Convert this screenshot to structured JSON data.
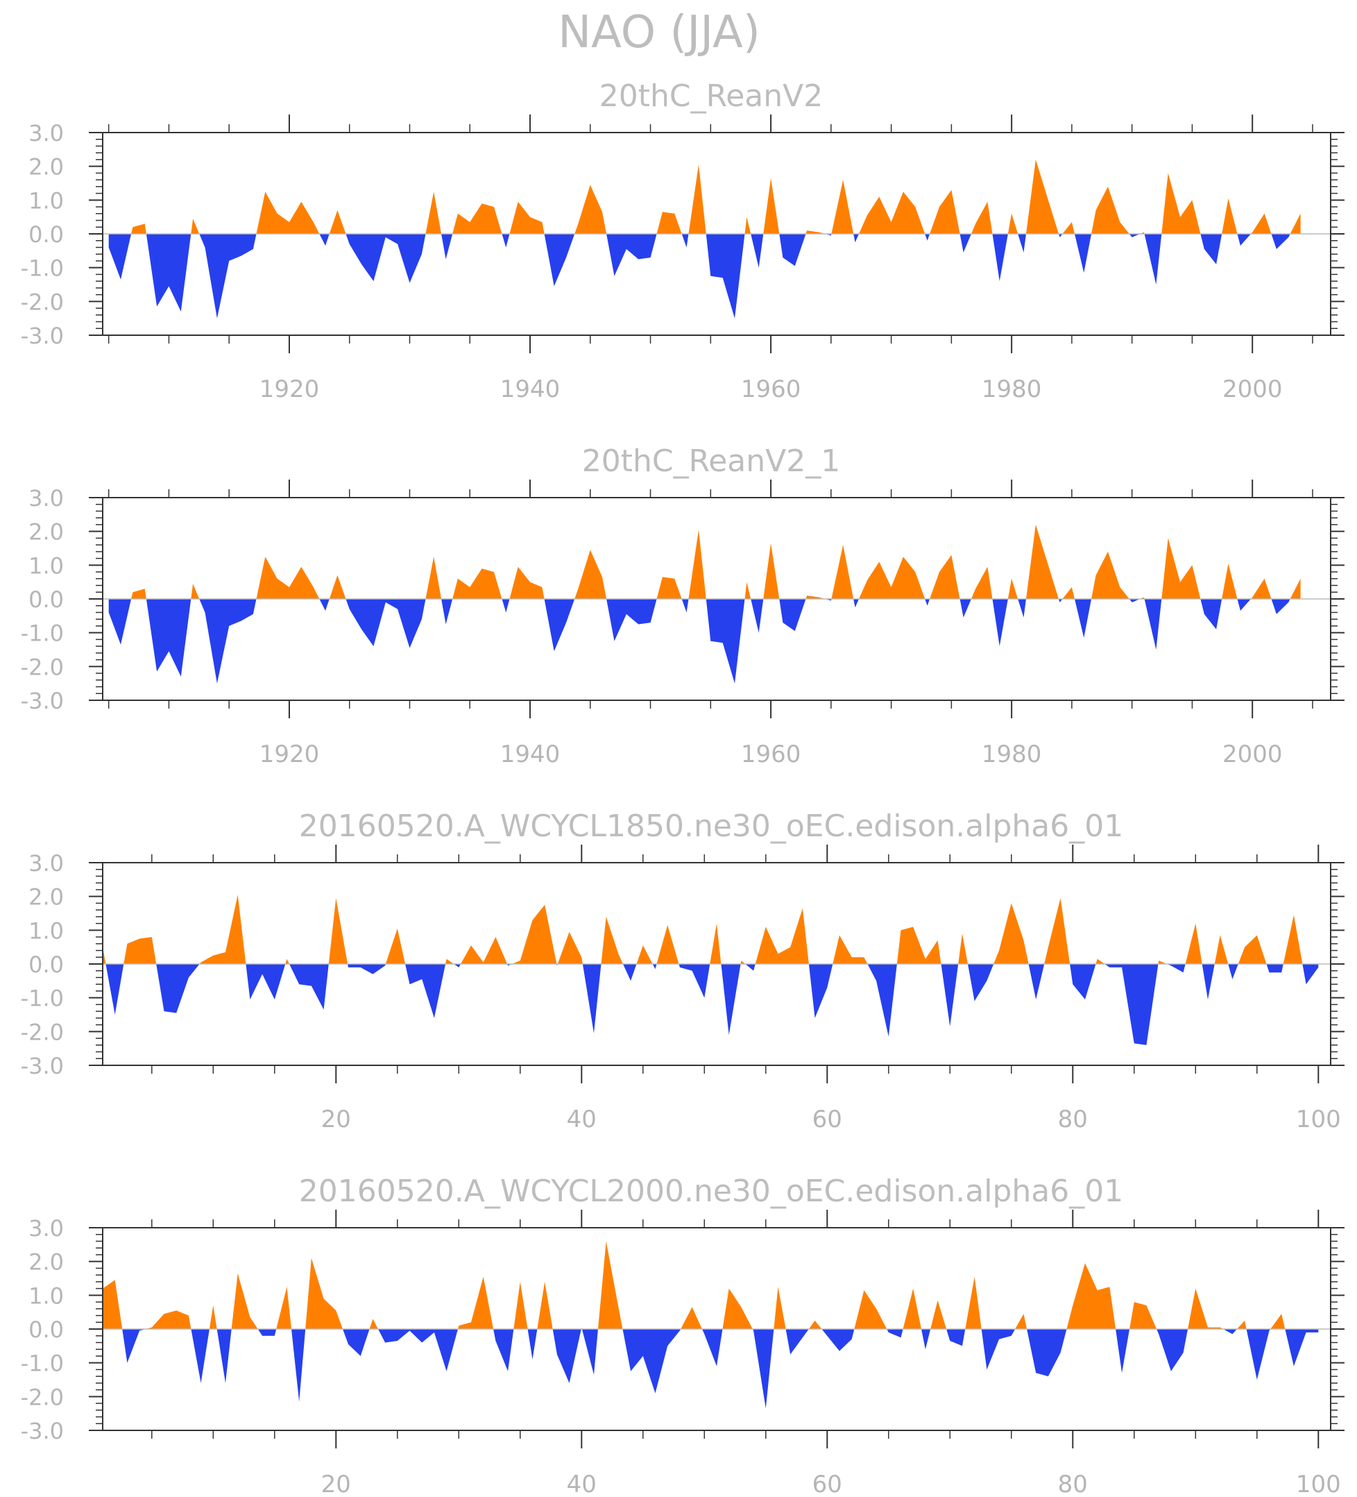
{
  "title": "NAO (JJA)",
  "colors": {
    "positive": "#ff8000",
    "negative": "#2640ee",
    "axis": "#333333",
    "text": "#b5b5b5"
  },
  "chart_data": [
    {
      "type": "area",
      "title": "20thC_ReanV2",
      "x_start": 1905,
      "xlim": [
        1904.5,
        2006.5
      ],
      "x_ticks": [
        1920,
        1940,
        1960,
        1980,
        2000
      ],
      "x_tick_labels": [
        "1920",
        "1940",
        "1960",
        "1980",
        "2000"
      ],
      "ylim": [
        -3,
        3
      ],
      "y_ticks": [
        -3,
        -2,
        -1,
        0,
        1,
        2,
        3
      ],
      "y_tick_labels": [
        "-3.0",
        "-2.0",
        "-1.0",
        "0.0",
        "1.0",
        "2.0",
        "3.0"
      ],
      "values": [
        -0.4,
        -1.35,
        0.2,
        0.3,
        -2.15,
        -1.55,
        -2.3,
        0.45,
        -0.4,
        -2.5,
        -0.8,
        -0.65,
        -0.45,
        1.25,
        0.6,
        0.35,
        0.95,
        0.35,
        -0.35,
        0.7,
        -0.3,
        -0.9,
        -1.4,
        -0.1,
        -0.3,
        -1.45,
        -0.6,
        1.25,
        -0.75,
        0.6,
        0.35,
        0.9,
        0.8,
        -0.4,
        0.95,
        0.5,
        0.35,
        -1.55,
        -0.7,
        0.3,
        1.45,
        0.65,
        -1.25,
        -0.45,
        -0.75,
        -0.7,
        0.65,
        0.6,
        -0.4,
        2.05,
        -1.25,
        -1.3,
        -2.5,
        0.5,
        -1.0,
        1.65,
        -0.7,
        -0.95,
        0.1,
        0.05,
        -0.05,
        1.6,
        -0.25,
        0.55,
        1.1,
        0.35,
        1.25,
        0.8,
        -0.2,
        0.8,
        1.3,
        -0.55,
        0.3,
        0.95,
        -1.4,
        0.6,
        -0.55,
        2.2,
        1.05,
        -0.1,
        0.35,
        -1.15,
        0.7,
        1.4,
        0.35,
        -0.1,
        0.05,
        -1.5,
        1.8,
        0.5,
        1.0,
        -0.45,
        -0.9,
        1.05,
        -0.35,
        0.05,
        0.6,
        -0.45,
        -0.1,
        0.6
      ]
    },
    {
      "type": "area",
      "title": "20thC_ReanV2_1",
      "x_start": 1905,
      "xlim": [
        1904.5,
        2006.5
      ],
      "x_ticks": [
        1920,
        1940,
        1960,
        1980,
        2000
      ],
      "x_tick_labels": [
        "1920",
        "1940",
        "1960",
        "1980",
        "2000"
      ],
      "ylim": [
        -3,
        3
      ],
      "y_ticks": [
        -3,
        -2,
        -1,
        0,
        1,
        2,
        3
      ],
      "y_tick_labels": [
        "-3.0",
        "-2.0",
        "-1.0",
        "0.0",
        "1.0",
        "2.0",
        "3.0"
      ],
      "values": [
        -0.4,
        -1.35,
        0.2,
        0.3,
        -2.15,
        -1.55,
        -2.3,
        0.45,
        -0.4,
        -2.5,
        -0.8,
        -0.65,
        -0.45,
        1.25,
        0.6,
        0.35,
        0.95,
        0.35,
        -0.35,
        0.7,
        -0.3,
        -0.9,
        -1.4,
        -0.1,
        -0.3,
        -1.45,
        -0.6,
        1.25,
        -0.75,
        0.6,
        0.35,
        0.9,
        0.8,
        -0.4,
        0.95,
        0.5,
        0.35,
        -1.55,
        -0.7,
        0.3,
        1.45,
        0.65,
        -1.25,
        -0.45,
        -0.75,
        -0.7,
        0.65,
        0.6,
        -0.4,
        2.05,
        -1.25,
        -1.3,
        -2.5,
        0.5,
        -1.0,
        1.65,
        -0.7,
        -0.95,
        0.1,
        0.05,
        -0.05,
        1.6,
        -0.25,
        0.55,
        1.1,
        0.35,
        1.25,
        0.8,
        -0.2,
        0.8,
        1.3,
        -0.55,
        0.3,
        0.95,
        -1.4,
        0.6,
        -0.55,
        2.2,
        1.05,
        -0.1,
        0.35,
        -1.15,
        0.7,
        1.4,
        0.35,
        -0.1,
        0.05,
        -1.5,
        1.8,
        0.5,
        1.0,
        -0.45,
        -0.9,
        1.05,
        -0.35,
        0.05,
        0.6,
        -0.45,
        -0.1,
        0.6
      ]
    },
    {
      "type": "area",
      "title": "20160520.A_WCYCL1850.ne30_oEC.edison.alpha6_01",
      "x_start": 1,
      "xlim": [
        1,
        101
      ],
      "x_ticks": [
        20,
        40,
        60,
        80,
        100
      ],
      "x_tick_labels": [
        "20",
        "40",
        "60",
        "80",
        "100"
      ],
      "ylim": [
        -3,
        3
      ],
      "y_ticks": [
        -3,
        -2,
        -1,
        0,
        1,
        2,
        3
      ],
      "y_tick_labels": [
        "-3.0",
        "-2.0",
        "-1.0",
        "0.0",
        "1.0",
        "2.0",
        "3.0"
      ],
      "values": [
        0.5,
        -1.5,
        0.6,
        0.75,
        0.8,
        -1.4,
        -1.45,
        -0.4,
        0.05,
        0.25,
        0.35,
        2.05,
        -1.05,
        -0.3,
        -1.05,
        0.15,
        -0.6,
        -0.65,
        -1.35,
        1.95,
        -0.1,
        -0.1,
        -0.3,
        -0.05,
        1.05,
        -0.6,
        -0.45,
        -1.6,
        0.15,
        -0.1,
        0.55,
        0.05,
        0.8,
        -0.05,
        0.1,
        1.3,
        1.75,
        -0.05,
        0.95,
        0.2,
        -2.05,
        1.4,
        0.3,
        -0.5,
        0.55,
        -0.15,
        1.15,
        -0.1,
        -0.2,
        -1.0,
        1.2,
        -2.1,
        0.1,
        -0.2,
        1.1,
        0.3,
        0.5,
        1.65,
        -1.6,
        -0.7,
        0.85,
        0.2,
        0.2,
        -0.5,
        -2.15,
        1.0,
        1.1,
        0.15,
        0.7,
        -1.85,
        0.9,
        -1.1,
        -0.5,
        0.4,
        1.8,
        0.7,
        -1.05,
        0.5,
        1.95,
        -0.6,
        -1.05,
        0.15,
        -0.1,
        -0.1,
        -2.35,
        -2.4,
        0.1,
        -0.05,
        -0.25,
        1.2,
        -1.05,
        0.85,
        -0.45,
        0.5,
        0.85,
        -0.25,
        -0.25,
        1.45,
        -0.6,
        -0.1
      ]
    },
    {
      "type": "area",
      "title": "20160520.A_WCYCL2000.ne30_oEC.edison.alpha6_01",
      "x_start": 1,
      "xlim": [
        1,
        101
      ],
      "x_ticks": [
        20,
        40,
        60,
        80,
        100
      ],
      "x_tick_labels": [
        "20",
        "40",
        "60",
        "80",
        "100"
      ],
      "ylim": [
        -3,
        3
      ],
      "y_ticks": [
        -3,
        -2,
        -1,
        0,
        1,
        2,
        3
      ],
      "y_tick_labels": [
        "-3.0",
        "-2.0",
        "-1.0",
        "0.0",
        "1.0",
        "2.0",
        "3.0"
      ],
      "values": [
        1.2,
        1.45,
        -1.0,
        -0.05,
        0.05,
        0.45,
        0.55,
        0.4,
        -1.6,
        0.7,
        -1.6,
        1.65,
        0.35,
        -0.2,
        -0.2,
        1.25,
        -2.15,
        2.1,
        0.9,
        0.55,
        -0.45,
        -0.8,
        0.3,
        -0.4,
        -0.35,
        -0.05,
        -0.4,
        -0.1,
        -1.25,
        0.1,
        0.2,
        1.55,
        -0.35,
        -1.25,
        1.4,
        -0.9,
        1.4,
        -0.75,
        -1.6,
        0.05,
        -1.35,
        2.6,
        0.65,
        -1.25,
        -0.8,
        -1.9,
        -0.5,
        -0.05,
        0.65,
        -0.15,
        -1.1,
        1.2,
        0.65,
        -0.05,
        -2.35,
        1.25,
        -0.75,
        -0.25,
        0.25,
        -0.2,
        -0.65,
        -0.3,
        1.15,
        0.6,
        -0.1,
        -0.25,
        1.2,
        -0.6,
        0.85,
        -0.35,
        -0.5,
        1.55,
        -1.2,
        -0.3,
        -0.2,
        0.45,
        -1.3,
        -1.4,
        -0.7,
        0.7,
        1.95,
        1.15,
        1.25,
        -1.3,
        0.8,
        0.7,
        -0.15,
        -1.25,
        -0.7,
        1.2,
        0.05,
        0.05,
        -0.15,
        0.25,
        -1.5,
        -0.05,
        0.45,
        -1.1,
        -0.1,
        -0.1
      ]
    }
  ]
}
